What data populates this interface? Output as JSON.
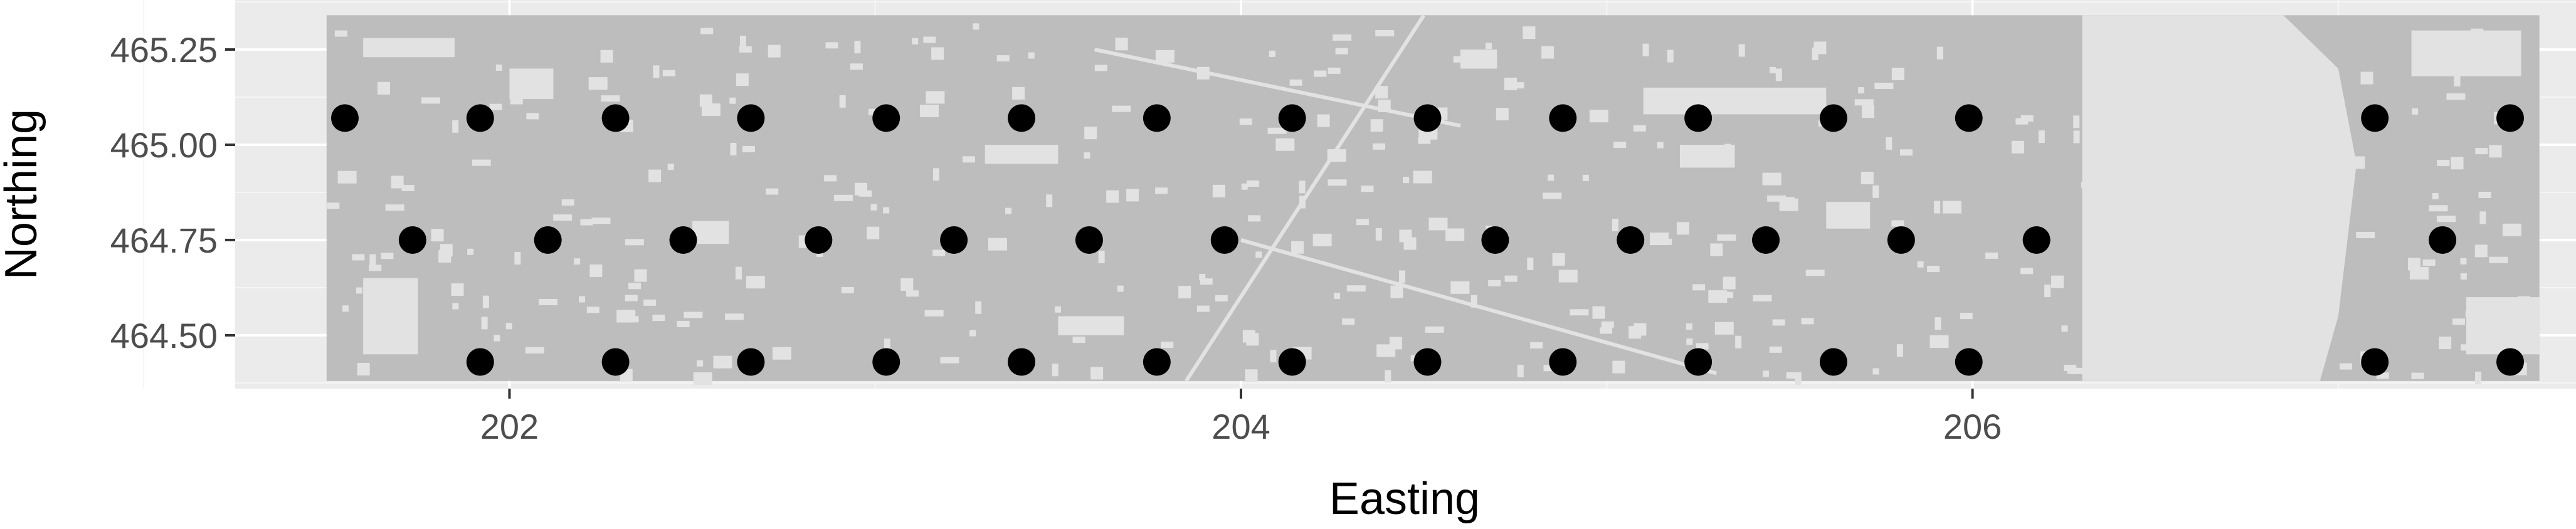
{
  "chart_data": {
    "type": "scatter",
    "title": "",
    "xlabel": "Easting",
    "ylabel": "Northing",
    "xlim": [
      201.25,
      207.65
    ],
    "ylim": [
      464.36,
      465.38
    ],
    "x_ticks": [
      202,
      204,
      206
    ],
    "y_ticks": [
      464.5,
      464.75,
      465.0,
      465.25
    ],
    "x_tick_labels": [
      "202",
      "204",
      "206"
    ],
    "y_tick_labels": [
      "464.50",
      "464.75",
      "465.00",
      "465.25"
    ],
    "grid": true,
    "legend": "none",
    "raster_extent": {
      "x": [
        201.5,
        207.55
      ],
      "y": [
        464.38,
        465.34
      ]
    },
    "points": [
      {
        "x": 201.55,
        "y": 465.07
      },
      {
        "x": 201.92,
        "y": 465.07
      },
      {
        "x": 202.29,
        "y": 465.07
      },
      {
        "x": 202.66,
        "y": 465.07
      },
      {
        "x": 203.03,
        "y": 465.07
      },
      {
        "x": 203.4,
        "y": 465.07
      },
      {
        "x": 203.77,
        "y": 465.07
      },
      {
        "x": 204.14,
        "y": 465.07
      },
      {
        "x": 204.51,
        "y": 465.07
      },
      {
        "x": 204.88,
        "y": 465.07
      },
      {
        "x": 205.25,
        "y": 465.07
      },
      {
        "x": 205.62,
        "y": 465.07
      },
      {
        "x": 205.99,
        "y": 465.07
      },
      {
        "x": 207.1,
        "y": 465.07
      },
      {
        "x": 207.47,
        "y": 465.07
      },
      {
        "x": 201.735,
        "y": 464.75
      },
      {
        "x": 202.105,
        "y": 464.75
      },
      {
        "x": 202.475,
        "y": 464.75
      },
      {
        "x": 202.845,
        "y": 464.75
      },
      {
        "x": 203.215,
        "y": 464.75
      },
      {
        "x": 203.585,
        "y": 464.75
      },
      {
        "x": 203.955,
        "y": 464.75
      },
      {
        "x": 204.695,
        "y": 464.75
      },
      {
        "x": 205.065,
        "y": 464.75
      },
      {
        "x": 205.435,
        "y": 464.75
      },
      {
        "x": 205.805,
        "y": 464.75
      },
      {
        "x": 206.175,
        "y": 464.75
      },
      {
        "x": 207.285,
        "y": 464.75
      },
      {
        "x": 201.92,
        "y": 464.43
      },
      {
        "x": 202.29,
        "y": 464.43
      },
      {
        "x": 202.66,
        "y": 464.43
      },
      {
        "x": 203.03,
        "y": 464.43
      },
      {
        "x": 203.4,
        "y": 464.43
      },
      {
        "x": 203.77,
        "y": 464.43
      },
      {
        "x": 204.14,
        "y": 464.43
      },
      {
        "x": 204.51,
        "y": 464.43
      },
      {
        "x": 204.88,
        "y": 464.43
      },
      {
        "x": 205.25,
        "y": 464.43
      },
      {
        "x": 205.62,
        "y": 464.43
      },
      {
        "x": 205.99,
        "y": 464.43
      },
      {
        "x": 207.1,
        "y": 464.43
      },
      {
        "x": 207.47,
        "y": 464.43
      }
    ]
  },
  "colors": {
    "panel": "#ebebeb",
    "grid_major": "#ffffff",
    "grid_minor": "#f5f5f5",
    "raster_fill": "#bdbdbd",
    "raster_gap": "#e2e2e2",
    "point": "#000000",
    "tick_text": "#4d4d4d",
    "axis_title": "#000000"
  }
}
